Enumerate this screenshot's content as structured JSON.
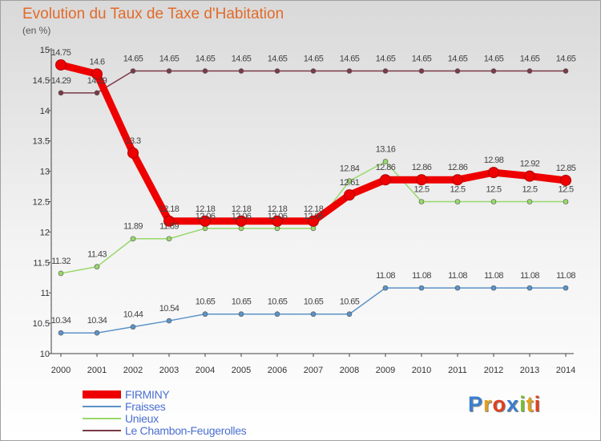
{
  "header": {
    "title": "Evolution du Taux de Taxe d'Habitation",
    "unit": "(en %)"
  },
  "legend": [
    {
      "label": "FIRMINY",
      "color": "#ee0000"
    },
    {
      "label": "Fraisses",
      "color": "#5b93c8"
    },
    {
      "label": "Unieux",
      "color": "#98d86a"
    },
    {
      "label": "Le Chambon-Feugerolles",
      "color": "#7a3a46"
    }
  ],
  "logo": {
    "letters": [
      "P",
      "r",
      "o",
      "x",
      "i",
      "t",
      "i"
    ],
    "colors": [
      "#3a7fd0",
      "#e0a020",
      "#e04020",
      "#3a7fd0",
      "#7ac030",
      "#e0a020",
      "#e04020"
    ]
  },
  "chart_data": {
    "type": "line",
    "title": "Evolution du Taux de Taxe d'Habitation",
    "ylabel": "(en %)",
    "x": [
      2000,
      2001,
      2002,
      2003,
      2004,
      2005,
      2006,
      2007,
      2008,
      2009,
      2010,
      2011,
      2012,
      2013,
      2014
    ],
    "xtick_labels": [
      "2000",
      "2001",
      "2002",
      "2003",
      "2004",
      "2005",
      "2006",
      "2007",
      "2008",
      "2009",
      "2010",
      "2011",
      "2012",
      "2013",
      "2014"
    ],
    "ylim": [
      10,
      15
    ],
    "yticks": [
      10,
      10.5,
      11,
      11.5,
      12,
      12.5,
      13,
      13.5,
      14,
      14.5,
      15
    ],
    "ytick_labels": [
      "10",
      "10.5",
      "11",
      "11.5",
      "12",
      "12.5",
      "13",
      "13.5",
      "14",
      "14.5",
      "15"
    ],
    "grid": false,
    "legend_position": "bottom-left",
    "series": [
      {
        "name": "Le Chambon-Feugerolles",
        "color": "#7a3a46",
        "values": [
          14.29,
          14.29,
          14.65,
          14.65,
          14.65,
          14.65,
          14.65,
          14.65,
          14.65,
          14.65,
          14.65,
          14.65,
          14.65,
          14.65,
          14.65
        ],
        "labels": [
          "14.29",
          "14.29",
          "14.65",
          "14.65",
          "14.65",
          "14.65",
          "14.65",
          "14.65",
          "14.65",
          "14.65",
          "14.65",
          "14.65",
          "14.65",
          "14.65",
          "14.65"
        ]
      },
      {
        "name": "Unieux",
        "color": "#98d86a",
        "values": [
          11.32,
          11.43,
          11.89,
          11.89,
          12.06,
          12.06,
          12.06,
          12.06,
          12.84,
          13.16,
          12.5,
          12.5,
          12.5,
          12.5,
          12.5
        ],
        "labels": [
          "11.32",
          "11.43",
          "11.89",
          "11.89",
          "12.06",
          "12.06",
          "12.06",
          "12.06",
          "12.84",
          "13.16",
          "12.5",
          "12.5",
          "12.5",
          "12.5",
          "12.5"
        ]
      },
      {
        "name": "Fraisses",
        "color": "#5b93c8",
        "values": [
          10.34,
          10.34,
          10.44,
          10.54,
          10.65,
          10.65,
          10.65,
          10.65,
          10.65,
          11.08,
          11.08,
          11.08,
          11.08,
          11.08,
          11.08
        ],
        "labels": [
          "10.34",
          "10.34",
          "10.44",
          "10.54",
          "10.65",
          "10.65",
          "10.65",
          "10.65",
          "10.65",
          "11.08",
          "11.08",
          "11.08",
          "11.08",
          "11.08",
          "11.08"
        ]
      },
      {
        "name": "FIRMINY",
        "color": "#ee0000",
        "values": [
          14.75,
          14.6,
          13.3,
          12.18,
          12.18,
          12.18,
          12.18,
          12.18,
          12.61,
          12.86,
          12.86,
          12.86,
          12.98,
          12.92,
          12.85
        ],
        "labels": [
          "14.75",
          "14.6",
          "13.3",
          "12.18",
          "12.18",
          "12.18",
          "12.18",
          "12.18",
          "12.61",
          "12.86",
          "12.86",
          "12.86",
          "12.98",
          "12.92",
          "12.85"
        ]
      }
    ]
  }
}
